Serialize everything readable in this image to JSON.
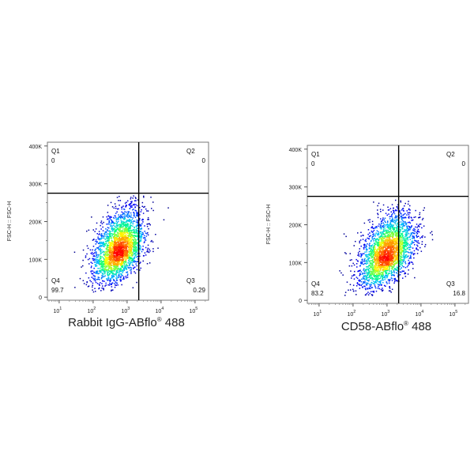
{
  "chart_data": [
    {
      "type": "scatter",
      "subtype": "flow-cytometry-density-plot",
      "ylabel": "FSC-H :: FSC-H",
      "xlabel_main": "Rabbit IgG-ABflo",
      "xlabel_sup": "®",
      "xlabel_tail": " 488",
      "x_scale": "log",
      "x_ticks": [
        {
          "value": 10,
          "base": "10",
          "exp": "1"
        },
        {
          "value": 100,
          "base": "10",
          "exp": "2"
        },
        {
          "value": 1000,
          "base": "10",
          "exp": "3"
        },
        {
          "value": 10000,
          "base": "10",
          "exp": "4"
        },
        {
          "value": 100000,
          "base": "10",
          "exp": "5"
        }
      ],
      "xlim": [
        4.5,
        250000
      ],
      "y_ticks": [
        {
          "value": 0,
          "label": "0"
        },
        {
          "value": 100000,
          "label": "100K"
        },
        {
          "value": 200000,
          "label": "200K"
        },
        {
          "value": 300000,
          "label": "300K"
        },
        {
          "value": 400000,
          "label": "400K"
        }
      ],
      "ylim": [
        -8000,
        410000
      ],
      "gate_x": 2200,
      "gate_y": 275000,
      "quadrants": [
        {
          "name": "Q1",
          "value": "0",
          "position": "top-left"
        },
        {
          "name": "Q2",
          "value": "0",
          "position": "top-right"
        },
        {
          "name": "Q3",
          "value": "0.29",
          "position": "bottom-right"
        },
        {
          "name": "Q4",
          "value": "99.7",
          "position": "bottom-left"
        }
      ],
      "population": {
        "center_x": 560,
        "center_y": 125000,
        "spread_logx": 0.38,
        "spread_y": 42000,
        "skew_y": 0.35
      },
      "colormap": [
        "#00008b",
        "#0000ff",
        "#00bfff",
        "#00ff80",
        "#ffff00",
        "#ff8000",
        "#ff0000"
      ]
    },
    {
      "type": "scatter",
      "subtype": "flow-cytometry-density-plot",
      "ylabel": "FSC-H :: FSC-H",
      "xlabel_main": "CD58-ABflo",
      "xlabel_sup": "®",
      "xlabel_tail": " 488",
      "x_scale": "log",
      "x_ticks": [
        {
          "value": 10,
          "base": "10",
          "exp": "1"
        },
        {
          "value": 100,
          "base": "10",
          "exp": "2"
        },
        {
          "value": 1000,
          "base": "10",
          "exp": "3"
        },
        {
          "value": 10000,
          "base": "10",
          "exp": "4"
        },
        {
          "value": 100000,
          "base": "10",
          "exp": "5"
        }
      ],
      "xlim": [
        4.5,
        250000
      ],
      "y_ticks": [
        {
          "value": 0,
          "label": "0"
        },
        {
          "value": 100000,
          "label": "100K"
        },
        {
          "value": 200000,
          "label": "200K"
        },
        {
          "value": 300000,
          "label": "300K"
        },
        {
          "value": 400000,
          "label": "400K"
        }
      ],
      "ylim": [
        -8000,
        410000
      ],
      "gate_x": 2200,
      "gate_y": 275000,
      "quadrants": [
        {
          "name": "Q1",
          "value": "0",
          "position": "top-left"
        },
        {
          "name": "Q2",
          "value": "0",
          "position": "top-right"
        },
        {
          "name": "Q3",
          "value": "16.8",
          "position": "bottom-right"
        },
        {
          "name": "Q4",
          "value": "83.2",
          "position": "bottom-left"
        }
      ],
      "population": {
        "center_x": 1000,
        "center_y": 125000,
        "spread_logx": 0.42,
        "spread_y": 42000,
        "skew_y": 0.35
      },
      "colormap": [
        "#00008b",
        "#0000ff",
        "#00bfff",
        "#00ff80",
        "#ffff00",
        "#ff8000",
        "#ff0000"
      ]
    }
  ]
}
